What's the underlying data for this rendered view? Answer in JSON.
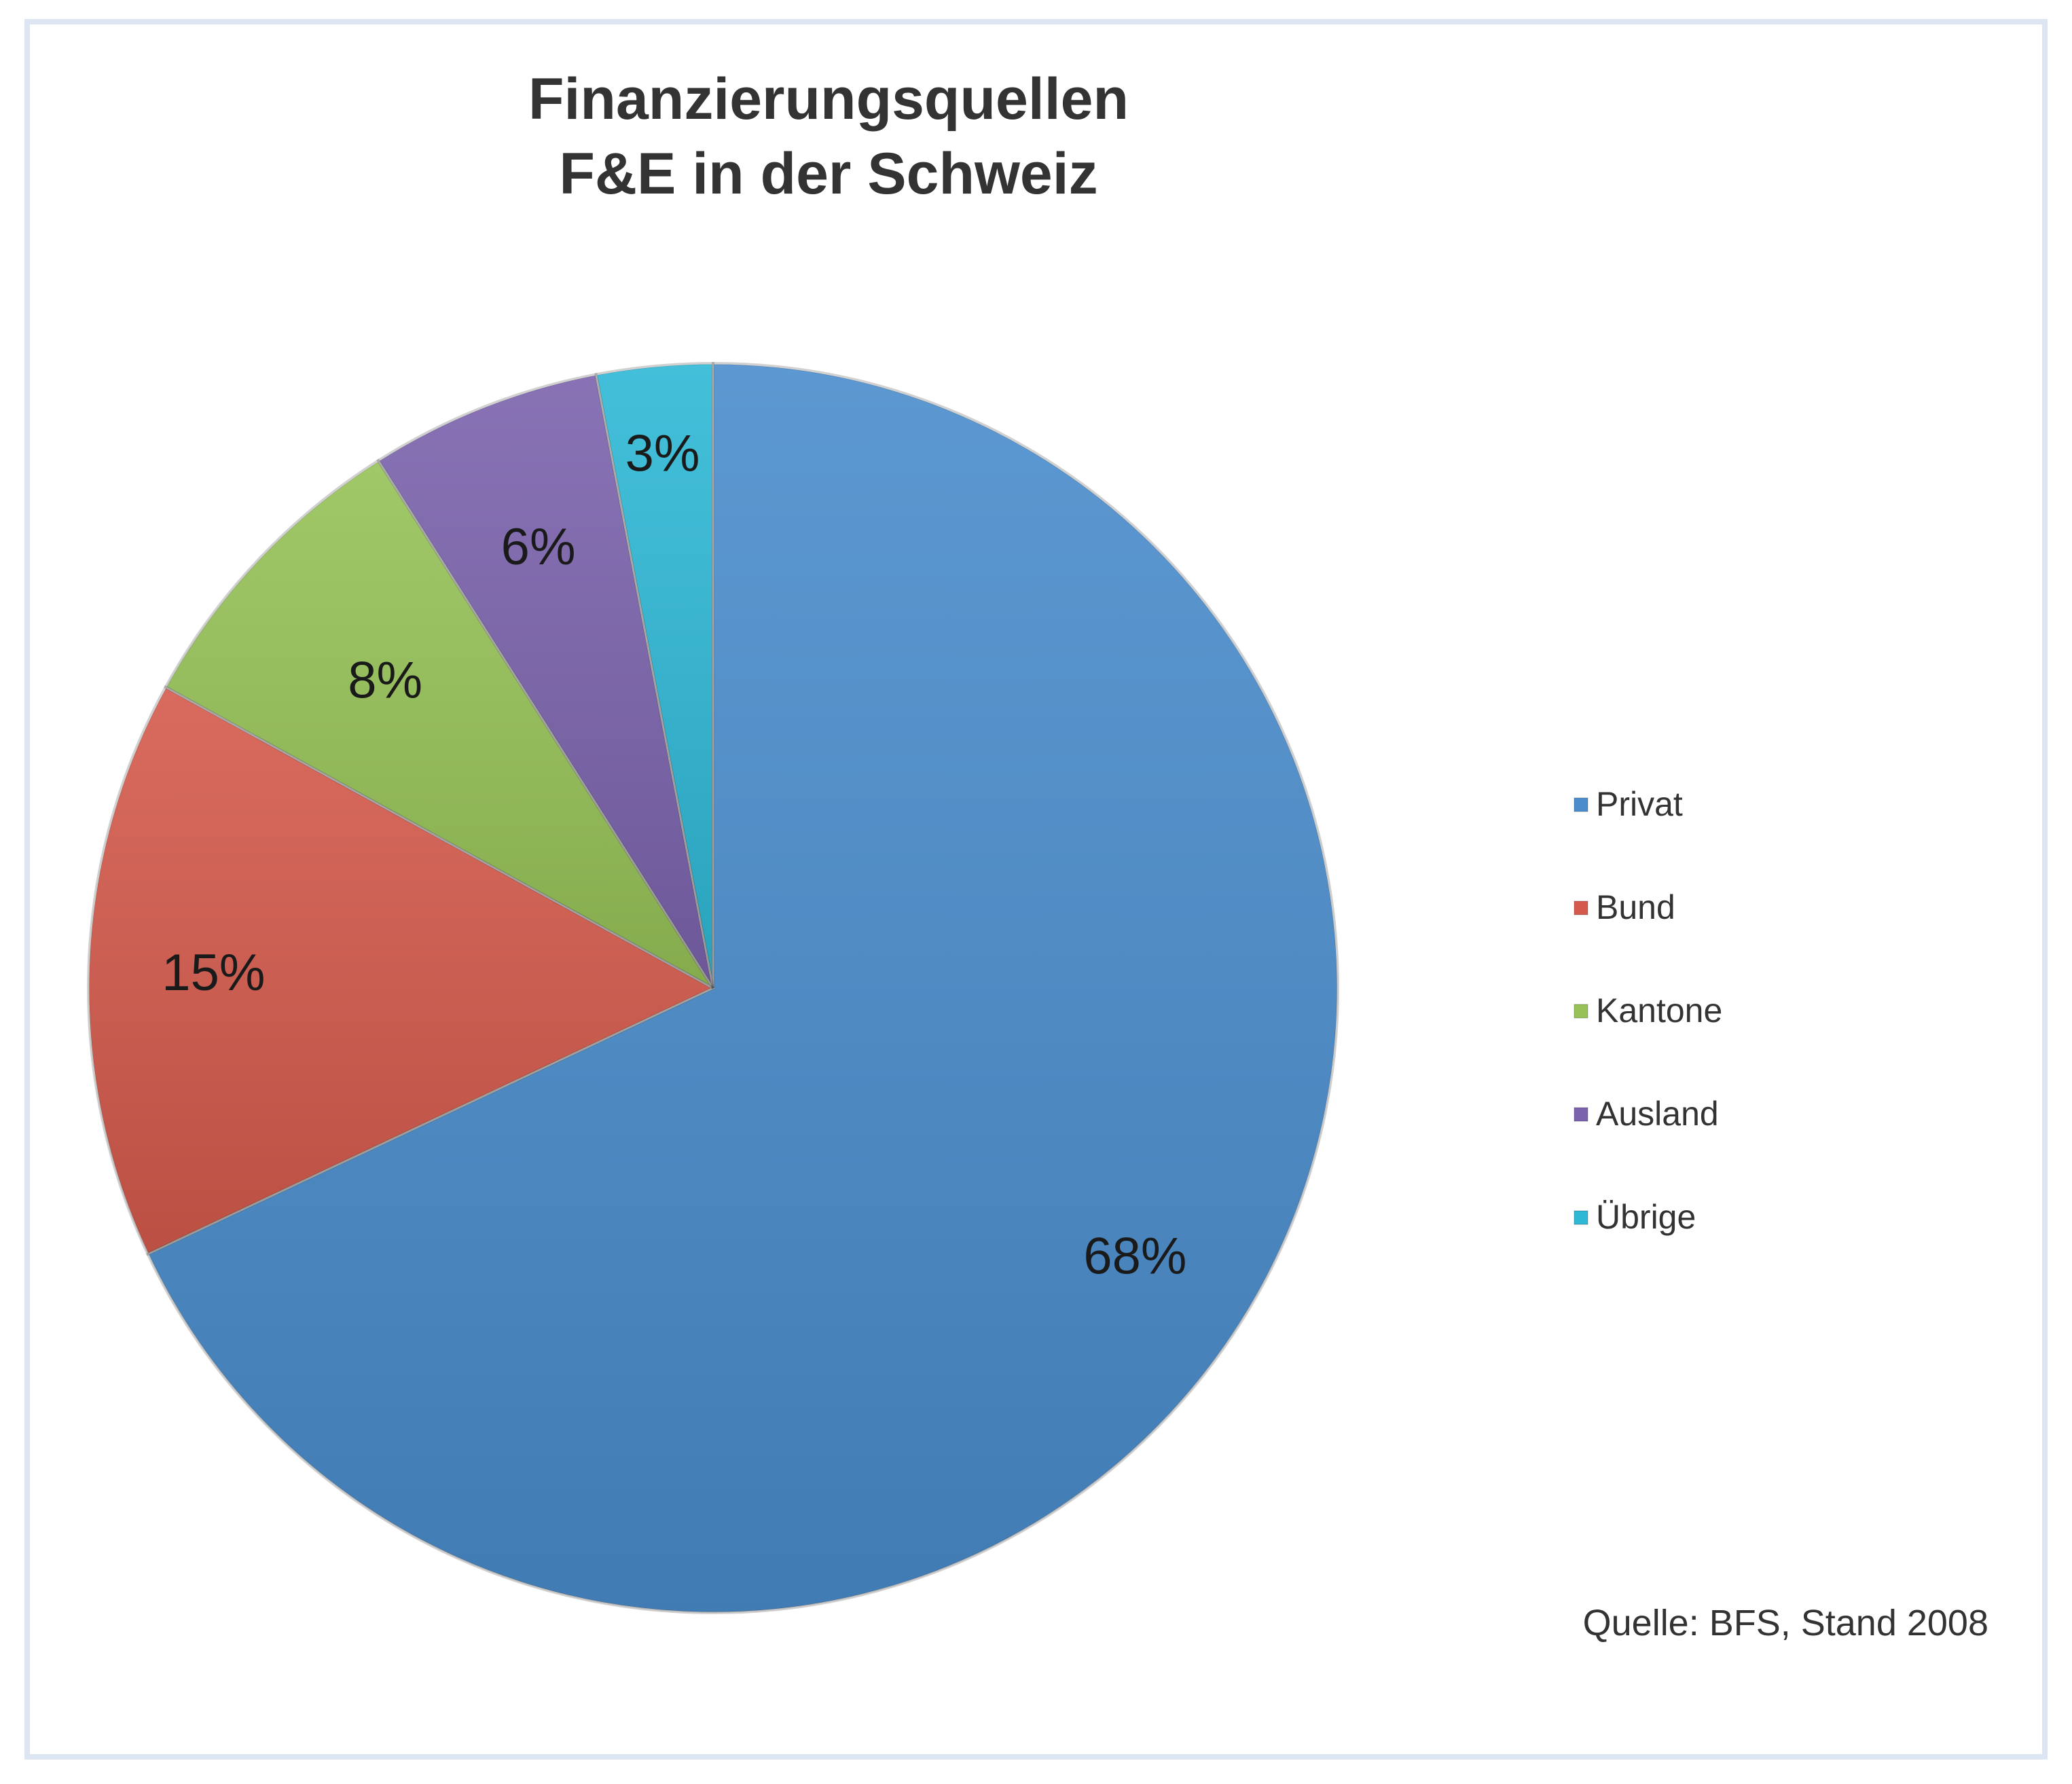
{
  "chart_data": {
    "type": "pie",
    "title_lines": [
      "Finanzierungsquellen",
      "F&E in der Schweiz"
    ],
    "slices": [
      {
        "name": "Privat",
        "value": 68,
        "label": "68%",
        "color": "#4a8ccc"
      },
      {
        "name": "Bund",
        "value": 15,
        "label": "15%",
        "color": "#d45a4c"
      },
      {
        "name": "Kantone",
        "value": 8,
        "label": "8%",
        "color": "#96c257"
      },
      {
        "name": "Ausland",
        "value": 6,
        "label": "6%",
        "color": "#7b63ad"
      },
      {
        "name": "Übrige",
        "value": 3,
        "label": "3%",
        "color": "#2fb8d6"
      }
    ],
    "legend_position": "right",
    "source": "Quelle: BFS, Stand 2008"
  }
}
